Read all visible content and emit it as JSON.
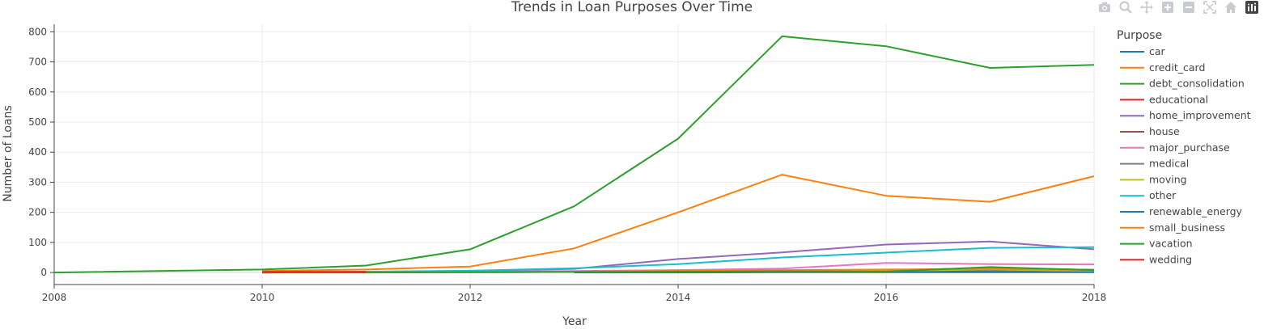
{
  "toolbar": {
    "buttons": [
      "camera-icon",
      "zoom-icon",
      "pan-icon",
      "zoom-in-icon",
      "zoom-out-icon",
      "autoscale-icon",
      "home-icon",
      "plotly-logo-icon"
    ],
    "icon_color": "#c8ccd1",
    "logo_color": "#444444"
  },
  "chart_data": {
    "type": "line",
    "title": "Trends in Loan Purposes Over Time",
    "xlabel": "Year",
    "ylabel": "Number of Loans",
    "xlim": [
      2008,
      2018
    ],
    "ylim": [
      -40,
      825
    ],
    "xticks": [
      2008,
      2010,
      2012,
      2014,
      2016,
      2018
    ],
    "yticks": [
      0,
      100,
      200,
      300,
      400,
      500,
      600,
      700,
      800
    ],
    "grid": true,
    "legend_title": "Purpose",
    "legend_position": "right",
    "series": [
      {
        "name": "car",
        "color": "#1f77b4",
        "x": [
          2010,
          2011,
          2012,
          2013,
          2014,
          2015,
          2016,
          2017,
          2018
        ],
        "y": [
          1,
          1,
          2,
          3,
          4,
          5,
          5,
          6,
          6
        ]
      },
      {
        "name": "credit_card",
        "color": "#ff7f0e",
        "x": [
          2010,
          2011,
          2012,
          2013,
          2014,
          2015,
          2016,
          2017,
          2018
        ],
        "y": [
          5,
          10,
          20,
          80,
          200,
          325,
          255,
          235,
          320
        ]
      },
      {
        "name": "debt_consolidation",
        "color": "#2ca02c",
        "x": [
          2008,
          2010,
          2011,
          2012,
          2013,
          2014,
          2015,
          2016,
          2017,
          2018
        ],
        "y": [
          0,
          10,
          23,
          77,
          220,
          445,
          785,
          752,
          680,
          690
        ]
      },
      {
        "name": "educational",
        "color": "#d62728",
        "x": [
          2010,
          2011
        ],
        "y": [
          1,
          1
        ]
      },
      {
        "name": "home_improvement",
        "color": "#9467bd",
        "x": [
          2010,
          2011,
          2012,
          2013,
          2014,
          2015,
          2016,
          2017,
          2018
        ],
        "y": [
          1,
          2,
          5,
          12,
          45,
          67,
          93,
          103,
          77
        ]
      },
      {
        "name": "house",
        "color": "#8c564b",
        "x": [
          2010,
          2011,
          2012,
          2013,
          2014,
          2015,
          2016,
          2017,
          2018
        ],
        "y": [
          0,
          1,
          1,
          2,
          4,
          6,
          8,
          14,
          9
        ]
      },
      {
        "name": "major_purchase",
        "color": "#e377c2",
        "x": [
          2010,
          2011,
          2012,
          2013,
          2014,
          2015,
          2016,
          2017,
          2018
        ],
        "y": [
          1,
          1,
          2,
          5,
          8,
          13,
          32,
          28,
          27
        ]
      },
      {
        "name": "medical",
        "color": "#7f7f7f",
        "x": [
          2010,
          2011,
          2012,
          2013,
          2014,
          2015,
          2016,
          2017,
          2018
        ],
        "y": [
          0,
          1,
          2,
          3,
          5,
          6,
          8,
          14,
          9
        ]
      },
      {
        "name": "moving",
        "color": "#bcbd22",
        "x": [
          2010,
          2011,
          2012,
          2013,
          2014,
          2015,
          2016,
          2017,
          2018
        ],
        "y": [
          0,
          0,
          1,
          2,
          3,
          4,
          5,
          10,
          5
        ]
      },
      {
        "name": "other",
        "color": "#17becf",
        "x": [
          2010,
          2011,
          2012,
          2013,
          2014,
          2015,
          2016,
          2017,
          2018
        ],
        "y": [
          2,
          3,
          6,
          14,
          28,
          50,
          66,
          82,
          84
        ]
      },
      {
        "name": "renewable_energy",
        "color": "#1f77b4",
        "x": [
          2013,
          2014,
          2015,
          2016,
          2017,
          2018
        ],
        "y": [
          0,
          0,
          1,
          1,
          1,
          1
        ]
      },
      {
        "name": "small_business",
        "color": "#ff7f0e",
        "x": [
          2010,
          2011,
          2012,
          2013,
          2014,
          2015,
          2016,
          2017,
          2018
        ],
        "y": [
          0,
          1,
          2,
          3,
          5,
          8,
          10,
          12,
          8
        ]
      },
      {
        "name": "vacation",
        "color": "#2ca02c",
        "x": [
          2010,
          2011,
          2012,
          2013,
          2014,
          2015,
          2016,
          2017,
          2018
        ],
        "y": [
          0,
          0,
          1,
          2,
          3,
          4,
          3,
          18,
          8
        ]
      },
      {
        "name": "wedding",
        "color": "#d62728",
        "x": [
          2010,
          2011
        ],
        "y": [
          2,
          2
        ]
      }
    ]
  }
}
